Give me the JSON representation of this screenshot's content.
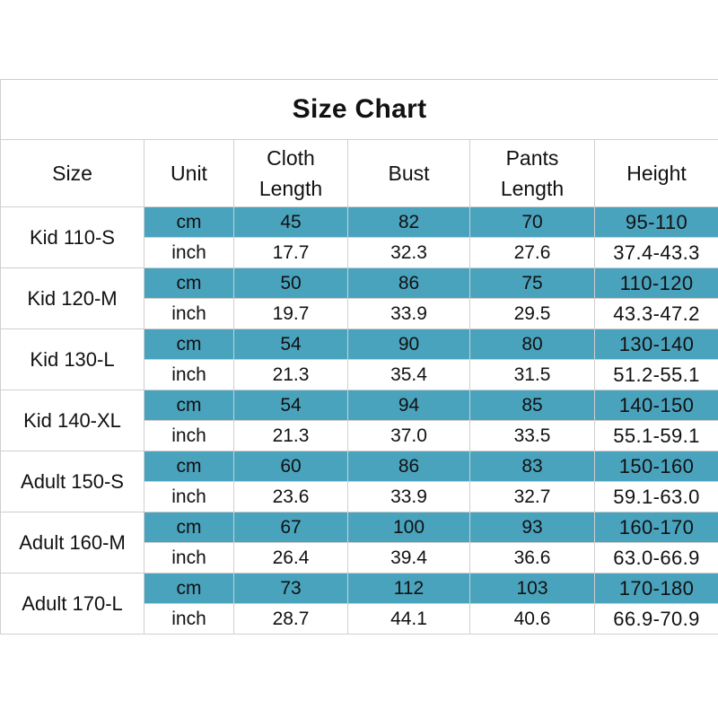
{
  "title": "Size Chart",
  "headers": {
    "size": "Size",
    "unit": "Unit",
    "cloth_length_1": "Cloth",
    "cloth_length_2": "Length",
    "bust": "Bust",
    "pants_length_1": "Pants",
    "pants_length_2": "Length",
    "height": "Height"
  },
  "colors": {
    "cm_row_background": "#4aa3bd",
    "inch_row_background": "#ffffff",
    "grid_line": "#cfcfcf"
  },
  "rows": [
    {
      "size": "Kid 110-S",
      "cm": {
        "unit": "cm",
        "cloth_length": "45",
        "bust": "82",
        "pants_length": "70",
        "height": "95-110"
      },
      "inch": {
        "unit": "inch",
        "cloth_length": "17.7",
        "bust": "32.3",
        "pants_length": "27.6",
        "height": "37.4-43.3"
      }
    },
    {
      "size": "Kid 120-M",
      "cm": {
        "unit": "cm",
        "cloth_length": "50",
        "bust": "86",
        "pants_length": "75",
        "height": "110-120"
      },
      "inch": {
        "unit": "inch",
        "cloth_length": "19.7",
        "bust": "33.9",
        "pants_length": "29.5",
        "height": "43.3-47.2"
      }
    },
    {
      "size": "Kid 130-L",
      "cm": {
        "unit": "cm",
        "cloth_length": "54",
        "bust": "90",
        "pants_length": "80",
        "height": "130-140"
      },
      "inch": {
        "unit": "inch",
        "cloth_length": "21.3",
        "bust": "35.4",
        "pants_length": "31.5",
        "height": "51.2-55.1"
      }
    },
    {
      "size": "Kid 140-XL",
      "cm": {
        "unit": "cm",
        "cloth_length": "54",
        "bust": "94",
        "pants_length": "85",
        "height": "140-150"
      },
      "inch": {
        "unit": "inch",
        "cloth_length": "21.3",
        "bust": "37.0",
        "pants_length": "33.5",
        "height": "55.1-59.1"
      }
    },
    {
      "size": "Adult 150-S",
      "cm": {
        "unit": "cm",
        "cloth_length": "60",
        "bust": "86",
        "pants_length": "83",
        "height": "150-160"
      },
      "inch": {
        "unit": "inch",
        "cloth_length": "23.6",
        "bust": "33.9",
        "pants_length": "32.7",
        "height": "59.1-63.0"
      }
    },
    {
      "size": "Adult 160-M",
      "cm": {
        "unit": "cm",
        "cloth_length": "67",
        "bust": "100",
        "pants_length": "93",
        "height": "160-170"
      },
      "inch": {
        "unit": "inch",
        "cloth_length": "26.4",
        "bust": "39.4",
        "pants_length": "36.6",
        "height": "63.0-66.9"
      }
    },
    {
      "size": "Adult 170-L",
      "cm": {
        "unit": "cm",
        "cloth_length": "73",
        "bust": "112",
        "pants_length": "103",
        "height": "170-180"
      },
      "inch": {
        "unit": "inch",
        "cloth_length": "28.7",
        "bust": "44.1",
        "pants_length": "40.6",
        "height": "66.9-70.9"
      }
    }
  ]
}
